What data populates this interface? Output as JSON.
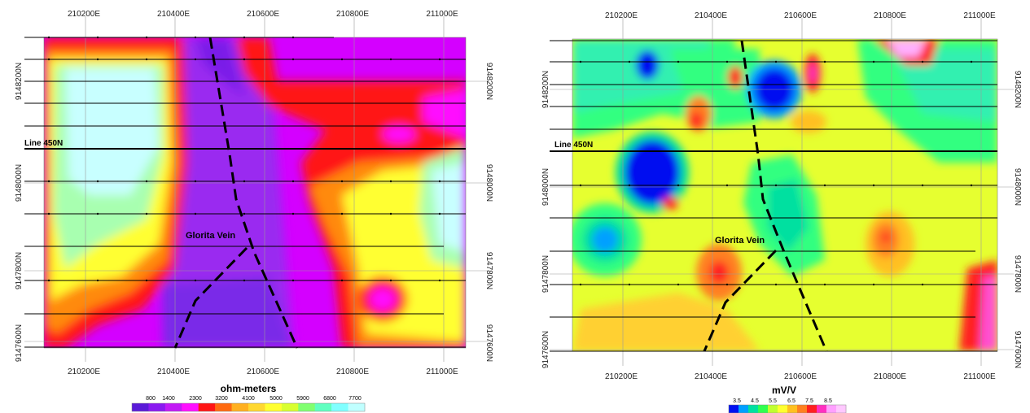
{
  "left_map": {
    "easting_labels": [
      "210200E",
      "210400E",
      "210600E",
      "210800E",
      "211000E"
    ],
    "northing_labels": [
      "9148200N",
      "9148000N",
      "9147800N",
      "9147600N"
    ],
    "line_label": "Line 450N",
    "vein_label": "Glorita Vein",
    "scale_title": "ohm-meters",
    "scale_ticks": [
      "800",
      "1400",
      "2300",
      "3200",
      "4100",
      "5000",
      "5900",
      "6800",
      "7700"
    ],
    "scale_colors": [
      "#5a1ad8",
      "#8a1af0",
      "#c21af5",
      "#ff10ff",
      "#ff1515",
      "#ff6a10",
      "#ffb020",
      "#ffd830",
      "#ffff30",
      "#d8ff30",
      "#80ff70",
      "#60ffc0",
      "#80ffff",
      "#c0ffff"
    ]
  },
  "right_map": {
    "easting_labels": [
      "210200E",
      "210400E",
      "210600E",
      "210800E",
      "211000E"
    ],
    "northing_labels": [
      "9148200N",
      "9148000N",
      "9147800N",
      "9147600N"
    ],
    "line_label": "Line 450N",
    "vein_label": "Glorita Vein",
    "scale_title": "mV/V",
    "scale_ticks": [
      "3.5",
      "4.5",
      "5.5",
      "6.5",
      "7.5",
      "8.5"
    ],
    "scale_colors": [
      "#0010f0",
      "#00a0ff",
      "#00e0a0",
      "#30ff50",
      "#c0ff30",
      "#ffff30",
      "#ffc020",
      "#ff8020",
      "#ff2020",
      "#ff30c0",
      "#ffa0ff",
      "#ffc8ff"
    ]
  }
}
